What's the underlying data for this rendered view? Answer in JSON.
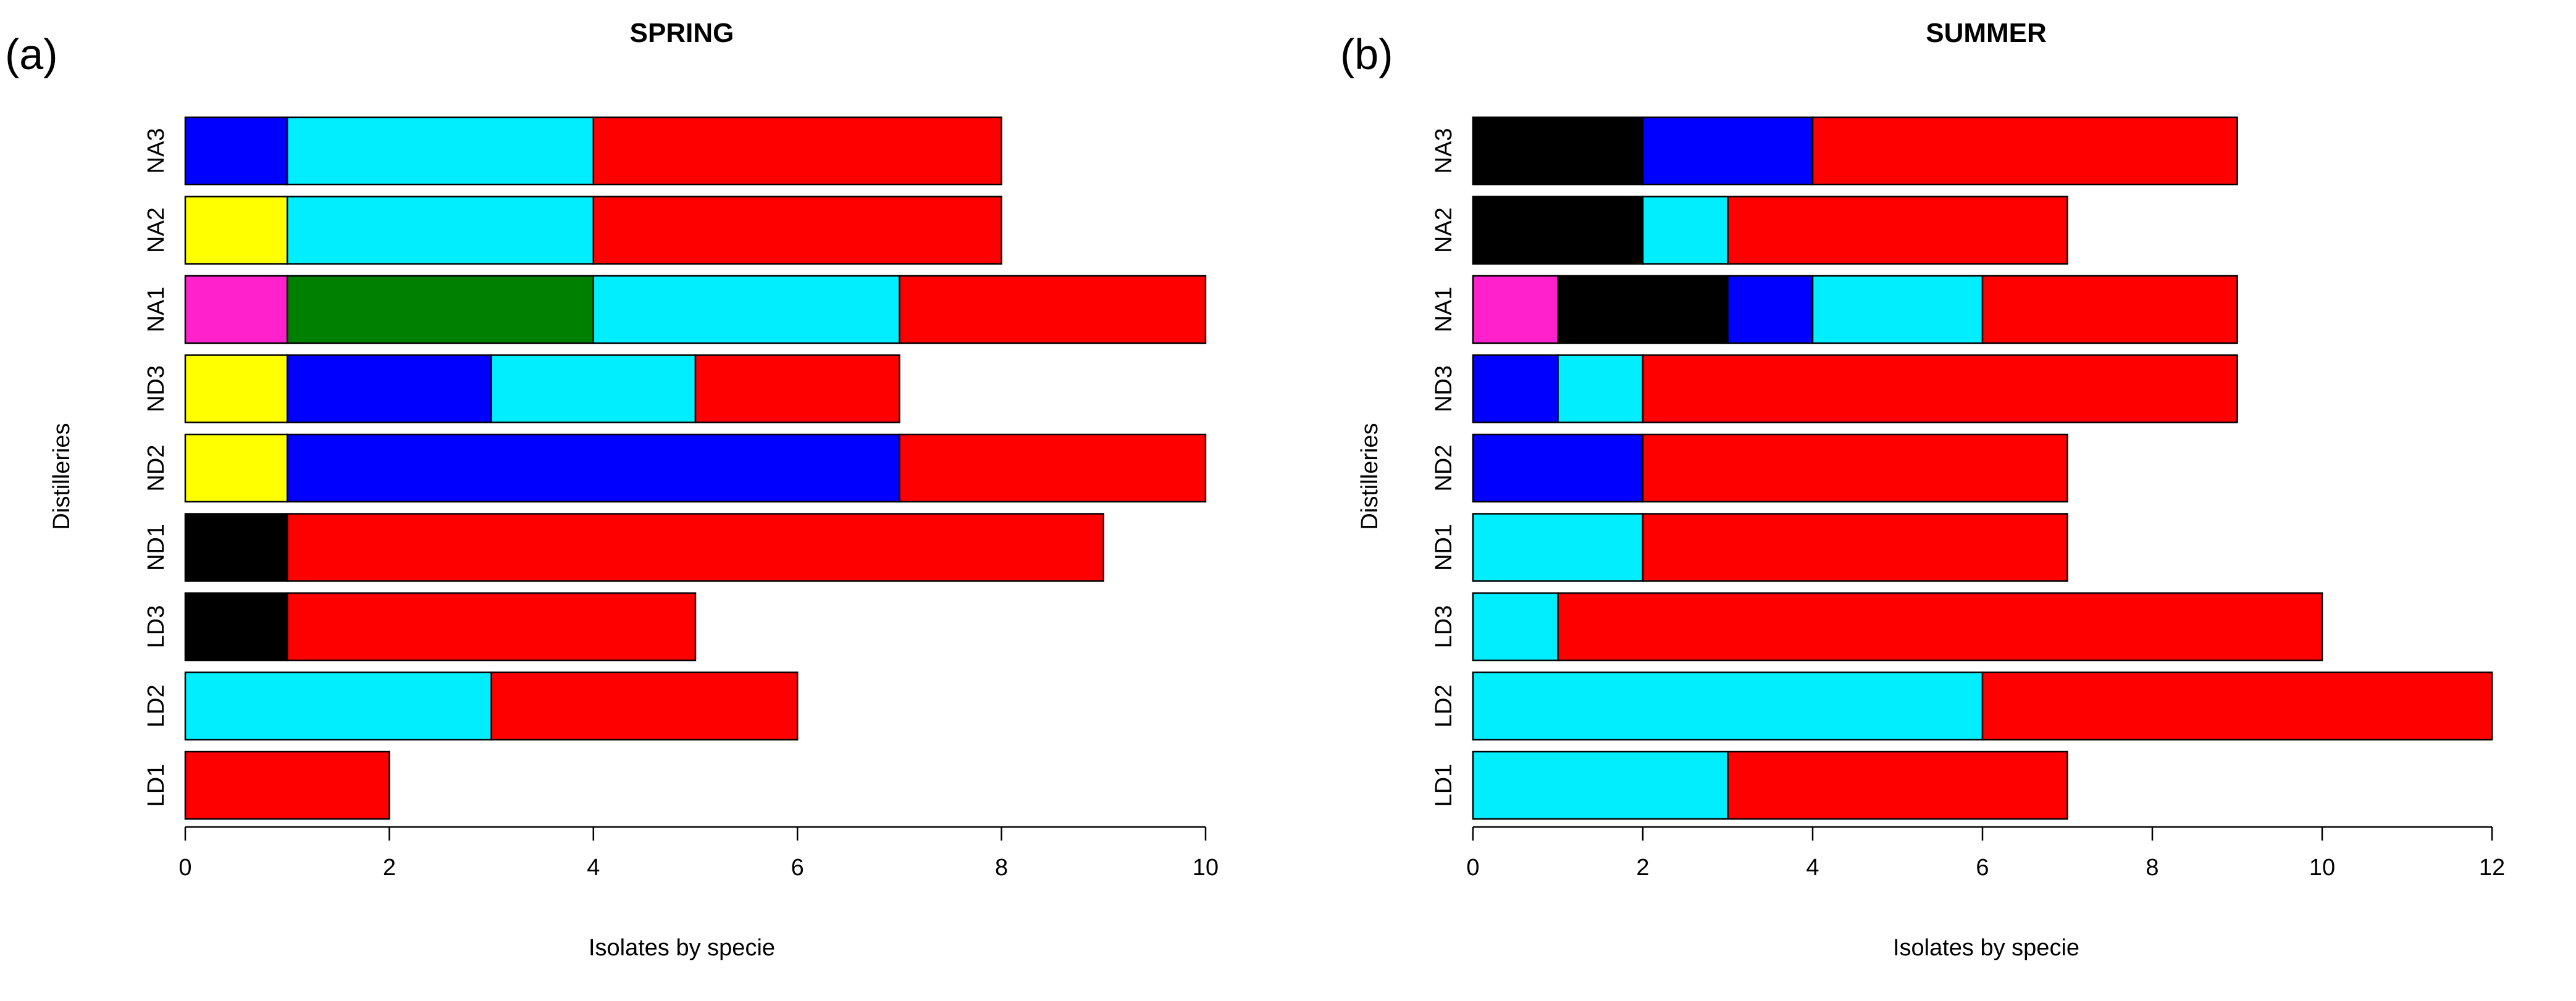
{
  "chart_data": [
    {
      "type": "bar",
      "orientation": "horizontal",
      "stacked": true,
      "panel_label": "(a)",
      "title": "SPRING",
      "xlabel": "Isolates by specie",
      "ylabel": "Distilleries",
      "xlim": [
        0,
        10
      ],
      "xticks": [
        0,
        2,
        4,
        6,
        8,
        10
      ],
      "categories": [
        "LD1",
        "LD2",
        "LD3",
        "ND1",
        "ND2",
        "ND3",
        "NA1",
        "NA2",
        "NA3"
      ],
      "bars": [
        {
          "category": "LD1",
          "segments": [
            {
              "color": "#ff0000",
              "value": 2
            }
          ]
        },
        {
          "category": "LD2",
          "segments": [
            {
              "color": "#00eeff",
              "value": 3
            },
            {
              "color": "#ff0000",
              "value": 3
            }
          ]
        },
        {
          "category": "LD3",
          "segments": [
            {
              "color": "#000000",
              "value": 1
            },
            {
              "color": "#ff0000",
              "value": 4
            }
          ]
        },
        {
          "category": "ND1",
          "segments": [
            {
              "color": "#000000",
              "value": 1
            },
            {
              "color": "#ff0000",
              "value": 8
            }
          ]
        },
        {
          "category": "ND2",
          "segments": [
            {
              "color": "#ffff00",
              "value": 1
            },
            {
              "color": "#0000ff",
              "value": 6
            },
            {
              "color": "#ff0000",
              "value": 3
            }
          ]
        },
        {
          "category": "ND3",
          "segments": [
            {
              "color": "#ffff00",
              "value": 1
            },
            {
              "color": "#0000ff",
              "value": 2
            },
            {
              "color": "#00eeff",
              "value": 2
            },
            {
              "color": "#ff0000",
              "value": 2
            }
          ]
        },
        {
          "category": "NA1",
          "segments": [
            {
              "color": "#ff22cc",
              "value": 1
            },
            {
              "color": "#008000",
              "value": 3
            },
            {
              "color": "#00eeff",
              "value": 3
            },
            {
              "color": "#ff0000",
              "value": 3
            }
          ]
        },
        {
          "category": "NA2",
          "segments": [
            {
              "color": "#ffff00",
              "value": 1
            },
            {
              "color": "#00eeff",
              "value": 3
            },
            {
              "color": "#ff0000",
              "value": 4
            }
          ]
        },
        {
          "category": "NA3",
          "segments": [
            {
              "color": "#0000ff",
              "value": 1
            },
            {
              "color": "#00eeff",
              "value": 3
            },
            {
              "color": "#ff0000",
              "value": 4
            }
          ]
        }
      ]
    },
    {
      "type": "bar",
      "orientation": "horizontal",
      "stacked": true,
      "panel_label": "(b)",
      "title": "SUMMER",
      "xlabel": "Isolates by specie",
      "ylabel": "Distilleries",
      "xlim": [
        0,
        12
      ],
      "xticks": [
        0,
        2,
        4,
        6,
        8,
        10,
        12
      ],
      "categories": [
        "LD1",
        "LD2",
        "LD3",
        "ND1",
        "ND2",
        "ND3",
        "NA1",
        "NA2",
        "NA3"
      ],
      "bars": [
        {
          "category": "LD1",
          "segments": [
            {
              "color": "#00eeff",
              "value": 3
            },
            {
              "color": "#ff0000",
              "value": 4
            }
          ]
        },
        {
          "category": "LD2",
          "segments": [
            {
              "color": "#00eeff",
              "value": 6
            },
            {
              "color": "#ff0000",
              "value": 6
            }
          ]
        },
        {
          "category": "LD3",
          "segments": [
            {
              "color": "#00eeff",
              "value": 1
            },
            {
              "color": "#ff0000",
              "value": 9
            }
          ]
        },
        {
          "category": "ND1",
          "segments": [
            {
              "color": "#00eeff",
              "value": 2
            },
            {
              "color": "#ff0000",
              "value": 5
            }
          ]
        },
        {
          "category": "ND2",
          "segments": [
            {
              "color": "#0000ff",
              "value": 2
            },
            {
              "color": "#ff0000",
              "value": 5
            }
          ]
        },
        {
          "category": "ND3",
          "segments": [
            {
              "color": "#0000ff",
              "value": 1
            },
            {
              "color": "#00eeff",
              "value": 1
            },
            {
              "color": "#ff0000",
              "value": 7
            }
          ]
        },
        {
          "category": "NA1",
          "segments": [
            {
              "color": "#ff22cc",
              "value": 1
            },
            {
              "color": "#000000",
              "value": 2
            },
            {
              "color": "#0000ff",
              "value": 1
            },
            {
              "color": "#00eeff",
              "value": 2
            },
            {
              "color": "#ff0000",
              "value": 3
            }
          ]
        },
        {
          "category": "NA2",
          "segments": [
            {
              "color": "#000000",
              "value": 2
            },
            {
              "color": "#00eeff",
              "value": 1
            },
            {
              "color": "#ff0000",
              "value": 4
            }
          ]
        },
        {
          "category": "NA3",
          "segments": [
            {
              "color": "#000000",
              "value": 2
            },
            {
              "color": "#0000ff",
              "value": 2
            },
            {
              "color": "#ff0000",
              "value": 5
            }
          ]
        }
      ]
    }
  ]
}
